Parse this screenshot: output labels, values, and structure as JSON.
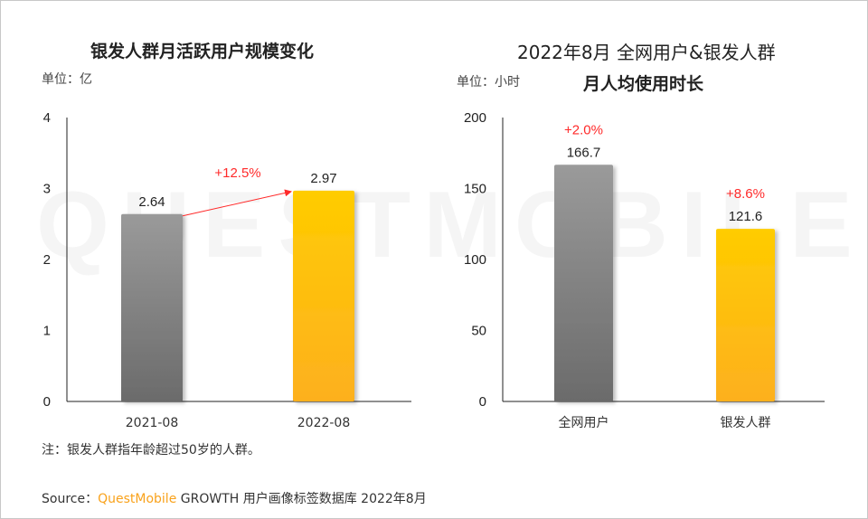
{
  "watermark": "QUESTMOBILE",
  "colors": {
    "gray_top": "#9a9a9a",
    "gray_bottom": "#6b6b6b",
    "gold_top": "#ffcc00",
    "gold_bottom": "#fdb01f",
    "growth": "#ff2a2a",
    "axis": "#222222",
    "brand": "#f9a21b"
  },
  "chart_data": [
    {
      "type": "bar",
      "title": "银发人群月活跃用户规模变化",
      "unit": "单位：亿",
      "categories": [
        "2021-08",
        "2022-08"
      ],
      "values": [
        2.64,
        2.97
      ],
      "ylim": [
        0,
        4
      ],
      "yticks": [
        "0",
        "1",
        "2",
        "3",
        "4"
      ],
      "annotations": [
        {
          "text": "+12.5%",
          "type": "arrow",
          "from": "2021-08",
          "to": "2022-08"
        }
      ],
      "grid": false
    },
    {
      "type": "bar",
      "title": "2022年8月 全网用户&银发人群",
      "title_line2": "月人均使用时长",
      "unit": "单位：小时",
      "categories": [
        "全网用户",
        "银发人群"
      ],
      "values": [
        166.7,
        121.6
      ],
      "ylim": [
        0,
        200
      ],
      "yticks": [
        "0",
        "50",
        "100",
        "150",
        "200"
      ],
      "annotations": [
        {
          "text": "+2.0%",
          "category": "全网用户"
        },
        {
          "text": "+8.6%",
          "category": "银发人群"
        }
      ],
      "grid": false
    }
  ],
  "footer": {
    "note": "注：银发人群指年龄超过50岁的人群。",
    "source_label": "Source：",
    "source_brand": "QuestMobile",
    "source_text": "GROWTH 用户画像标签数据库 2022年8月"
  }
}
